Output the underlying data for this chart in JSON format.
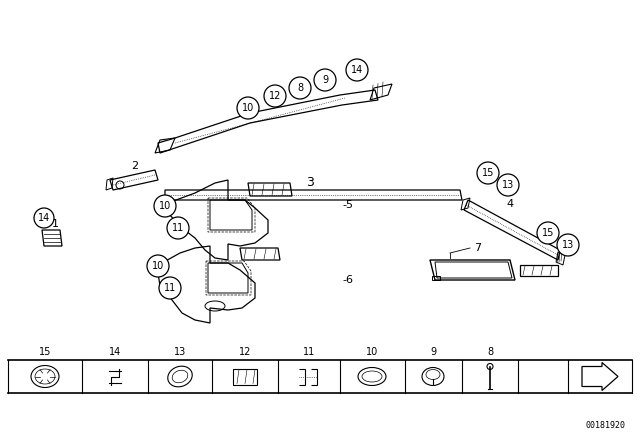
{
  "bg_color": "#ffffff",
  "line_color": "#000000",
  "part_number_text": "00181920",
  "fig_width": 6.4,
  "fig_height": 4.48,
  "dpi": 100
}
